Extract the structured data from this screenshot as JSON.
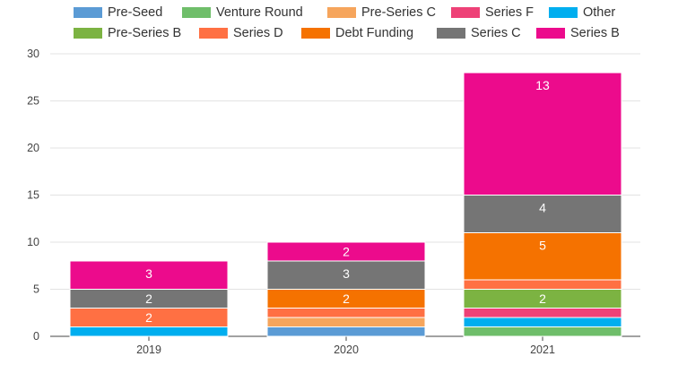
{
  "chart_data": {
    "type": "bar",
    "stacked": true,
    "categories": [
      "2019",
      "2020",
      "2021"
    ],
    "ylim": [
      0,
      30
    ],
    "yticks": [
      0,
      5,
      10,
      15,
      20,
      25,
      30
    ],
    "grid": true,
    "legend_position": "top",
    "title": "",
    "xlabel": "",
    "ylabel": "",
    "series": [
      {
        "name": "Venture Round",
        "color": "#6fbe6a",
        "values": [
          0,
          0,
          1
        ]
      },
      {
        "name": "Pre-Seed",
        "color": "#5b9bd5",
        "values": [
          0,
          1,
          0
        ]
      },
      {
        "name": "Other",
        "color": "#00aeef",
        "values": [
          1,
          0,
          1
        ]
      },
      {
        "name": "Series F",
        "color": "#ee4177",
        "values": [
          0,
          0,
          1
        ]
      },
      {
        "name": "Pre-Series C",
        "color": "#f6a55c",
        "values": [
          0,
          1,
          0
        ]
      },
      {
        "name": "Pre-Series B",
        "color": "#7cb342",
        "values": [
          0,
          0,
          2
        ]
      },
      {
        "name": "Series D",
        "color": "#ff7043",
        "values": [
          2,
          1,
          1
        ]
      },
      {
        "name": "Debt Funding",
        "color": "#f57200",
        "values": [
          0,
          2,
          5
        ]
      },
      {
        "name": "Series C",
        "color": "#757575",
        "values": [
          2,
          3,
          4
        ]
      },
      {
        "name": "Series B",
        "color": "#ec0b8c",
        "values": [
          3,
          2,
          13
        ]
      }
    ],
    "data_labels": [
      {
        "category": "2019",
        "series": "Series D",
        "text": "2"
      },
      {
        "category": "2019",
        "series": "Series C",
        "text": "2"
      },
      {
        "category": "2019",
        "series": "Series B",
        "text": "3"
      },
      {
        "category": "2020",
        "series": "Debt Funding",
        "text": "2"
      },
      {
        "category": "2020",
        "series": "Series C",
        "text": "3"
      },
      {
        "category": "2020",
        "series": "Series B",
        "text": "2"
      },
      {
        "category": "2021",
        "series": "Pre-Series B",
        "text": "2"
      },
      {
        "category": "2021",
        "series": "Debt Funding",
        "text": "5"
      },
      {
        "category": "2021",
        "series": "Series C",
        "text": "4"
      },
      {
        "category": "2021",
        "series": "Series B",
        "text": "13"
      }
    ]
  },
  "legend": {
    "rows": [
      [
        "Pre-Seed",
        "Venture Round",
        "Pre-Series C",
        "Series F",
        "Other"
      ],
      [
        "Pre-Series B",
        "Series D",
        "Debt Funding",
        "Series C",
        "Series B"
      ]
    ]
  }
}
